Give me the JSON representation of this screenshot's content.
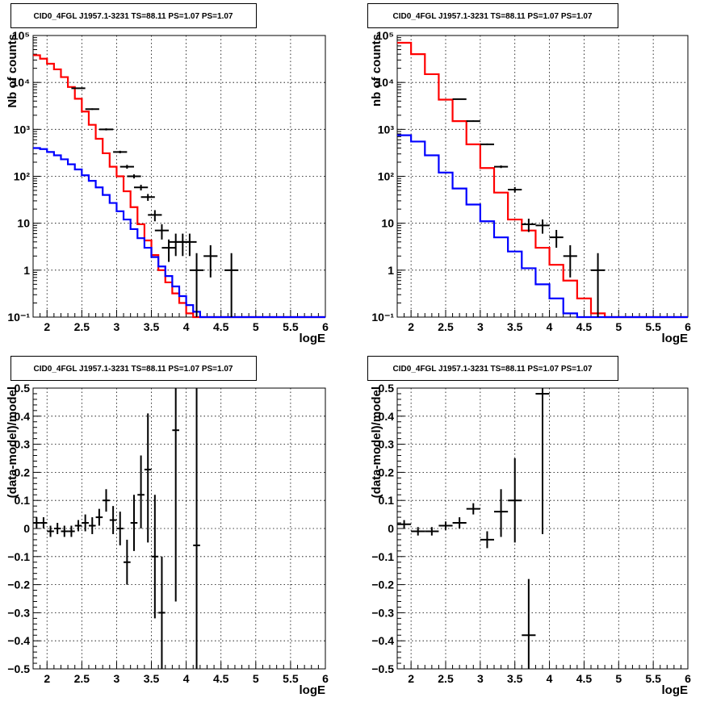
{
  "chart_data": [
    {
      "type": "line",
      "title": "CID0_4FGL J1957.1-3231 TS=88.11 PS=1.07 PS=1.07",
      "xlabel": "logE",
      "ylabel": "Nb of counts",
      "xlim": [
        1.8,
        6
      ],
      "ylim": [
        0.1,
        100000
      ],
      "yscale": "log",
      "grid": true,
      "x_ticks": [
        "2",
        "2.5",
        "3",
        "3.5",
        "4",
        "4.5",
        "5",
        "5.5",
        "6"
      ],
      "y_ticks": [
        "10⁻¹",
        "1",
        "10",
        "10²",
        "10³",
        "10⁴",
        "10⁵"
      ],
      "bin_edges": [
        1.8,
        1.9,
        2.0,
        2.1,
        2.2,
        2.3,
        2.4,
        2.5,
        2.6,
        2.7,
        2.8,
        2.9,
        3.0,
        3.1,
        3.2,
        3.3,
        3.4,
        3.5,
        3.6,
        3.7,
        3.8,
        3.9,
        4.0,
        4.1,
        4.2,
        4.3,
        4.4,
        4.5,
        4.6,
        4.7,
        4.8,
        4.9,
        5.0,
        5.1,
        5.2,
        5.3,
        5.4,
        5.5,
        5.6,
        5.7,
        5.8,
        5.9,
        6.0
      ],
      "series": [
        {
          "style": "step",
          "color": "#ff0000",
          "values": [
            38000,
            32000,
            25000,
            19000,
            13000,
            8000,
            4500,
            2400,
            1250,
            630,
            310,
            160,
            100,
            48,
            22,
            9.5,
            4.3,
            2.1,
            1.0,
            0.55,
            0.32,
            0.2,
            0.12,
            0.1,
            0.1,
            0.1,
            0.1,
            0.1,
            0.1,
            0.1,
            0.1,
            0.1,
            0.1,
            0.1,
            0.1,
            0.1,
            0.1,
            0.1,
            0.1,
            0.1,
            0.1,
            0.1
          ]
        },
        {
          "style": "step",
          "color": "#0000ff",
          "values": [
            400,
            380,
            330,
            280,
            230,
            180,
            140,
            105,
            80,
            58,
            40,
            27,
            18,
            12,
            7.5,
            4.8,
            3.0,
            1.9,
            1.2,
            0.75,
            0.45,
            0.28,
            0.18,
            0.13,
            0.1,
            0.1,
            0.1,
            0.1,
            0.1,
            0.1,
            0.1,
            0.1,
            0.1,
            0.1,
            0.1,
            0.1,
            0.1,
            0.1,
            0.1,
            0.1,
            0.1,
            0.1
          ]
        },
        {
          "style": "errorbar",
          "color": "#000000",
          "x": [
            2.45,
            2.65,
            2.85,
            3.05,
            3.15,
            3.25,
            3.35,
            3.45,
            3.55,
            3.65,
            3.75,
            3.85,
            3.95,
            4.05,
            4.15,
            4.35,
            4.65
          ],
          "y": [
            7500,
            2700,
            1000,
            330,
            160,
            100,
            58,
            36,
            15,
            7,
            3,
            4,
            4,
            4,
            1,
            2,
            1
          ],
          "y_low": [
            7300,
            2600,
            950,
            310,
            145,
            90,
            50,
            30,
            11,
            4.5,
            1.5,
            2,
            2,
            2,
            0.1,
            0.7,
            0.1
          ],
          "y_high": [
            7700,
            2800,
            1050,
            350,
            175,
            110,
            66,
            42,
            19,
            9.5,
            4.5,
            6,
            6,
            6,
            2.3,
            3.4,
            2.3
          ]
        }
      ]
    },
    {
      "type": "line",
      "title": "CID0_4FGL J1957.1-3231 TS=88.11 PS=1.07 PS=1.07",
      "xlabel": "logE",
      "ylabel": "nb of counts",
      "xlim": [
        1.8,
        6
      ],
      "ylim": [
        0.1,
        100000
      ],
      "yscale": "log",
      "grid": true,
      "x_ticks": [
        "2",
        "2.5",
        "3",
        "3.5",
        "4",
        "4.5",
        "5",
        "5.5",
        "6"
      ],
      "y_ticks": [
        "10⁻¹",
        "1",
        "10",
        "10²",
        "10³",
        "10⁴",
        "10⁵"
      ],
      "bin_edges": [
        1.8,
        2.0,
        2.2,
        2.4,
        2.6,
        2.8,
        3.0,
        3.2,
        3.4,
        3.6,
        3.8,
        4.0,
        4.2,
        4.4,
        4.6,
        4.8,
        5.0,
        5.2,
        5.4,
        5.6,
        5.8,
        6.0
      ],
      "series": [
        {
          "style": "step",
          "color": "#ff0000",
          "values": [
            70000,
            40000,
            15000,
            4300,
            1500,
            480,
            150,
            45,
            12,
            7,
            3,
            1.3,
            0.6,
            0.25,
            0.12,
            0.1,
            0.1,
            0.1,
            0.1,
            0.1,
            0.1
          ]
        },
        {
          "style": "step",
          "color": "#0000ff",
          "values": [
            750,
            550,
            280,
            120,
            55,
            25,
            11,
            5,
            2.5,
            1.1,
            0.5,
            0.25,
            0.12,
            0.1,
            0.1,
            0.1,
            0.1,
            0.1,
            0.1,
            0.1,
            0.1
          ]
        },
        {
          "style": "errorbar",
          "color": "#000000",
          "x": [
            2.7,
            2.9,
            3.1,
            3.3,
            3.5,
            3.7,
            3.9,
            4.1,
            4.3,
            4.7
          ],
          "y": [
            4400,
            1500,
            480,
            160,
            52,
            9.5,
            9,
            5,
            2,
            1
          ],
          "y_low": [
            4300,
            1450,
            460,
            150,
            45,
            6.5,
            6,
            3,
            0.7,
            0.1
          ],
          "y_high": [
            4500,
            1550,
            500,
            170,
            59,
            12.5,
            12,
            7.2,
            3.4,
            2.3
          ]
        }
      ]
    },
    {
      "type": "scatter",
      "title": "CID0_4FGL J1957.1-3231 TS=88.11 PS=1.07 PS=1.07",
      "xlabel": "logE",
      "ylabel": "(data-model)/model",
      "xlim": [
        1.8,
        6
      ],
      "ylim": [
        -0.5,
        0.5
      ],
      "yscale": "linear",
      "grid": true,
      "x_ticks": [
        "2",
        "2.5",
        "3",
        "3.5",
        "4",
        "4.5",
        "5",
        "5.5",
        "6"
      ],
      "y_ticks": [
        "−0.5",
        "−0.4",
        "−0.3",
        "−0.2",
        "−0.1",
        "0",
        "0.1",
        "0.2",
        "0.3",
        "0.4",
        "0.5"
      ],
      "x_halfwidth": 0.05,
      "series": [
        {
          "style": "errorbar",
          "color": "#000000",
          "x": [
            1.85,
            1.95,
            2.05,
            2.15,
            2.25,
            2.35,
            2.45,
            2.55,
            2.65,
            2.75,
            2.85,
            2.95,
            3.05,
            3.15,
            3.25,
            3.35,
            3.45,
            3.55,
            3.65,
            3.85,
            4.15
          ],
          "y": [
            0.02,
            0.02,
            -0.01,
            0.0,
            -0.01,
            -0.01,
            0.01,
            0.02,
            0.01,
            0.04,
            0.1,
            0.03,
            0.0,
            -0.12,
            0.02,
            0.12,
            0.21,
            -0.1,
            -0.3,
            0.35,
            -0.06
          ],
          "y_low": [
            0.0,
            0.0,
            -0.03,
            -0.02,
            -0.03,
            -0.03,
            -0.01,
            -0.01,
            -0.02,
            0.01,
            0.06,
            -0.02,
            -0.06,
            -0.2,
            -0.08,
            0.0,
            -0.05,
            -0.32,
            -0.5,
            -0.26,
            -0.5
          ],
          "y_high": [
            0.04,
            0.04,
            0.01,
            0.02,
            0.01,
            0.01,
            0.03,
            0.05,
            0.04,
            0.07,
            0.14,
            0.08,
            0.06,
            -0.04,
            0.12,
            0.26,
            0.41,
            0.12,
            -0.1,
            0.5,
            0.5
          ]
        }
      ]
    },
    {
      "type": "scatter",
      "title": "CID0_4FGL J1957.1-3231 TS=88.11 PS=1.07 PS=1.07",
      "xlabel": "logE",
      "ylabel": "(data-model)/model",
      "xlim": [
        1.8,
        6
      ],
      "ylim": [
        -0.5,
        0.5
      ],
      "yscale": "linear",
      "grid": true,
      "x_ticks": [
        "2",
        "2.5",
        "3",
        "3.5",
        "4",
        "4.5",
        "5",
        "5.5",
        "6"
      ],
      "y_ticks": [
        "−0.5",
        "−0.4",
        "−0.3",
        "−0.2",
        "−0.1",
        "0",
        "0.1",
        "0.2",
        "0.3",
        "0.4",
        "0.5"
      ],
      "x_halfwidth": 0.1,
      "series": [
        {
          "style": "errorbar",
          "color": "#000000",
          "x": [
            1.9,
            2.1,
            2.3,
            2.5,
            2.7,
            2.9,
            3.1,
            3.3,
            3.5,
            3.7,
            3.9
          ],
          "y": [
            0.015,
            -0.01,
            -0.01,
            0.01,
            0.02,
            0.07,
            -0.04,
            0.06,
            0.1,
            -0.38,
            0.48
          ],
          "y_low": [
            0.0,
            -0.025,
            -0.025,
            -0.005,
            0.0,
            0.05,
            -0.07,
            -0.03,
            -0.05,
            -0.5,
            -0.02
          ],
          "y_high": [
            0.03,
            0.005,
            0.005,
            0.025,
            0.04,
            0.09,
            -0.01,
            0.14,
            0.25,
            -0.18,
            0.5
          ]
        }
      ]
    }
  ]
}
